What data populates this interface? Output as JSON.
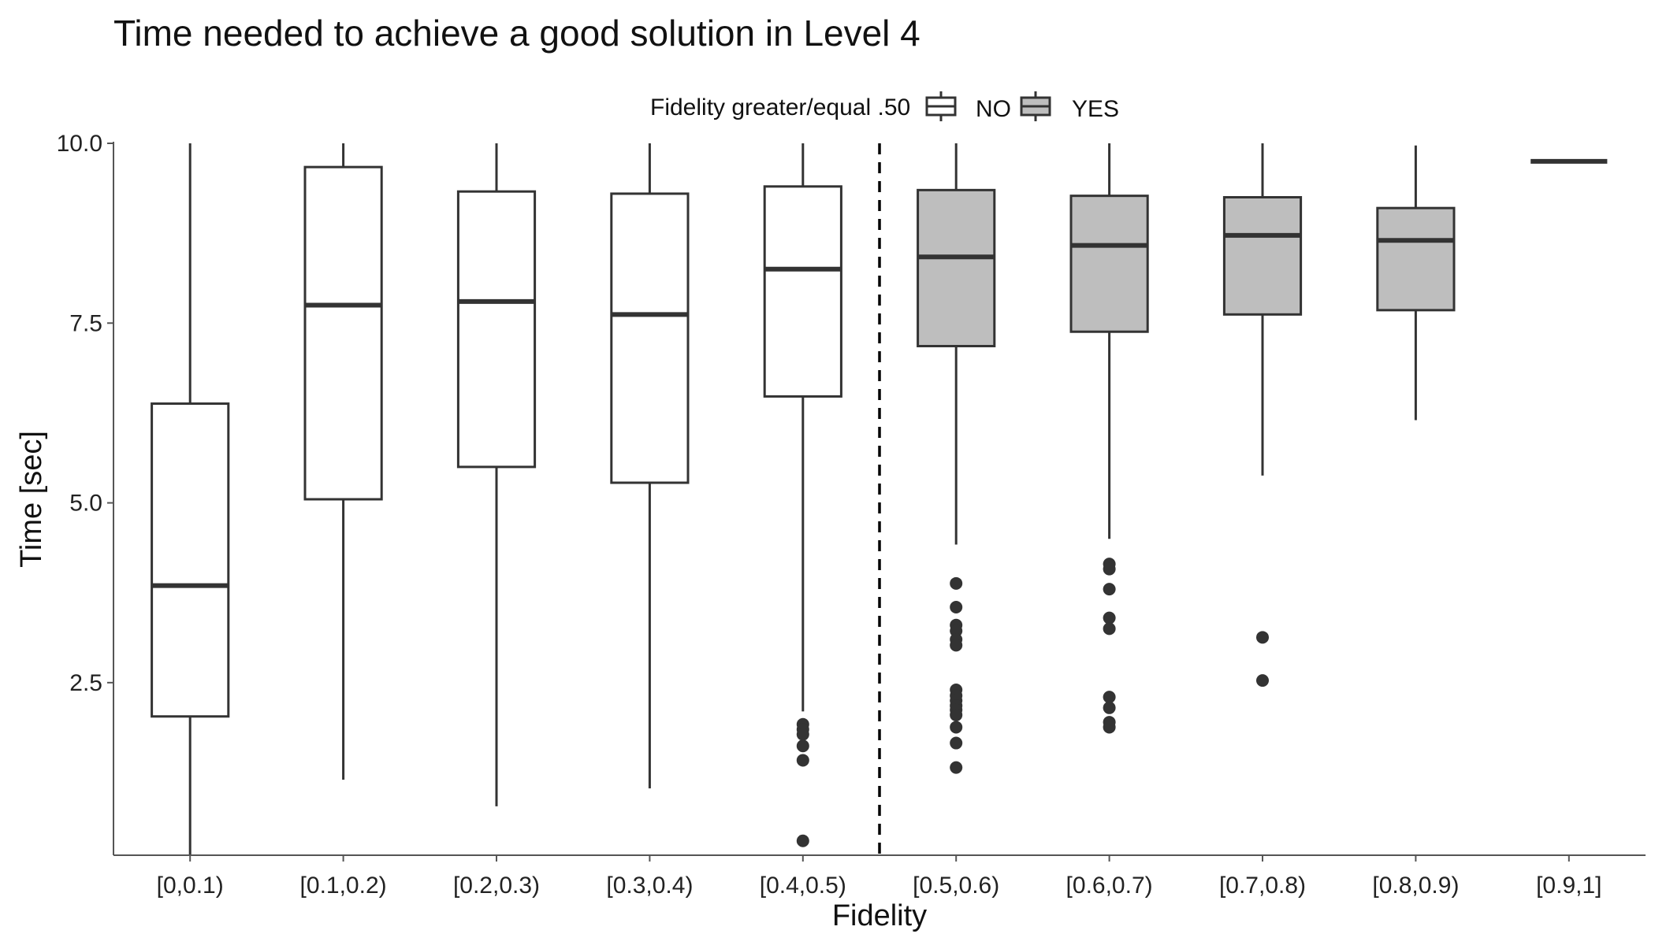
{
  "chart_data": {
    "type": "box",
    "title": "Time needed to achieve a good solution in Level 4",
    "xlabel": "Fidelity",
    "ylabel": "Time [sec]",
    "ylim": [
      0.1,
      10
    ],
    "yticks": [
      "2.5",
      "5.0",
      "7.5",
      "10.0"
    ],
    "grid": false,
    "legend": {
      "title": "Fidelity greater/equal .50",
      "position": "top",
      "entries": [
        {
          "label": "NO",
          "fill": "#ffffff"
        },
        {
          "label": "YES",
          "fill": "#bebebe"
        }
      ]
    },
    "reference_line": {
      "between": [
        "[0.4,0.5)",
        "[0.5,0.6)"
      ],
      "style": "dashed"
    },
    "categories": [
      "[0,0.1)",
      "[0.1,0.2)",
      "[0.2,0.3)",
      "[0.3,0.4)",
      "[0.4,0.5)",
      "[0.5,0.6)",
      "[0.6,0.7)",
      "[0.7,0.8)",
      "[0.8,0.9)",
      "[0.9,1]"
    ],
    "boxes": [
      {
        "category": "[0,0.1)",
        "group": "NO",
        "whisker_low": 0.1,
        "q1": 2.03,
        "median": 3.85,
        "q3": 6.38,
        "whisker_high": 10.0,
        "outliers": []
      },
      {
        "category": "[0.1,0.2)",
        "group": "NO",
        "whisker_low": 1.15,
        "q1": 5.05,
        "median": 7.75,
        "q3": 9.67,
        "whisker_high": 10.0,
        "outliers": []
      },
      {
        "category": "[0.2,0.3)",
        "group": "NO",
        "whisker_low": 0.78,
        "q1": 5.5,
        "median": 7.8,
        "q3": 9.33,
        "whisker_high": 10.0,
        "outliers": []
      },
      {
        "category": "[0.3,0.4)",
        "group": "NO",
        "whisker_low": 1.03,
        "q1": 5.28,
        "median": 7.62,
        "q3": 9.3,
        "whisker_high": 10.0,
        "outliers": []
      },
      {
        "category": "[0.4,0.5)",
        "group": "NO",
        "whisker_low": 2.1,
        "q1": 6.48,
        "median": 8.25,
        "q3": 9.4,
        "whisker_high": 10.0,
        "outliers": [
          1.92,
          1.85,
          1.78,
          1.62,
          1.42,
          0.3
        ]
      },
      {
        "category": "[0.5,0.6)",
        "group": "YES",
        "whisker_low": 4.42,
        "q1": 7.18,
        "median": 8.42,
        "q3": 9.35,
        "whisker_high": 10.0,
        "outliers": [
          3.88,
          3.55,
          3.3,
          3.22,
          3.1,
          3.02,
          2.4,
          2.32,
          2.25,
          2.18,
          2.12,
          2.05,
          1.88,
          1.66,
          1.32
        ]
      },
      {
        "category": "[0.6,0.7)",
        "group": "YES",
        "whisker_low": 4.5,
        "q1": 7.38,
        "median": 8.58,
        "q3": 9.27,
        "whisker_high": 10.0,
        "outliers": [
          4.15,
          4.08,
          3.8,
          3.4,
          3.25,
          2.3,
          2.15,
          1.95,
          1.88
        ]
      },
      {
        "category": "[0.7,0.8)",
        "group": "YES",
        "whisker_low": 5.38,
        "q1": 7.62,
        "median": 8.72,
        "q3": 9.25,
        "whisker_high": 10.0,
        "outliers": [
          3.13,
          2.53
        ]
      },
      {
        "category": "[0.8,0.9)",
        "group": "YES",
        "whisker_low": 6.15,
        "q1": 7.68,
        "median": 8.65,
        "q3": 9.1,
        "whisker_high": 9.97,
        "outliers": []
      },
      {
        "category": "[0.9,1]",
        "group": "YES",
        "whisker_low": 9.75,
        "q1": 9.75,
        "median": 9.75,
        "q3": 9.75,
        "whisker_high": 9.75,
        "outliers": []
      }
    ]
  }
}
